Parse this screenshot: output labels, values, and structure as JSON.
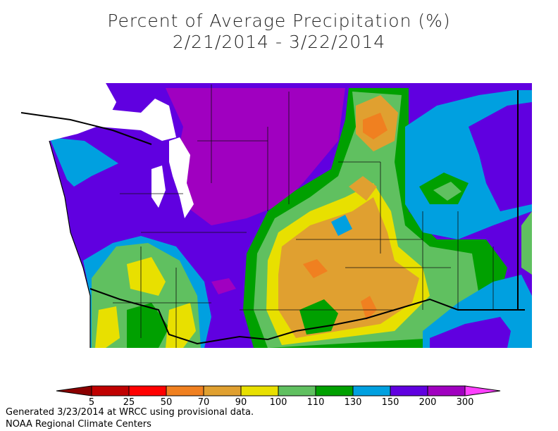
{
  "header": {
    "title": "Percent of Average Precipitation (%)",
    "subtitle": "2/21/2014 - 3/22/2014"
  },
  "legend": {
    "ticks": [
      5,
      25,
      50,
      70,
      90,
      100,
      110,
      130,
      150,
      200,
      300
    ],
    "colors": [
      "#8b0000",
      "#c00000",
      "#ff0000",
      "#f08020",
      "#e0a030",
      "#e8e000",
      "#60c060",
      "#00a000",
      "#00a0e0",
      "#6000e0",
      "#a000c0",
      "#ff40ff"
    ]
  },
  "footer": [
    "Generated 3/23/2014 at WRCC using provisional data.",
    "NOAA Regional Climate Centers"
  ]
}
